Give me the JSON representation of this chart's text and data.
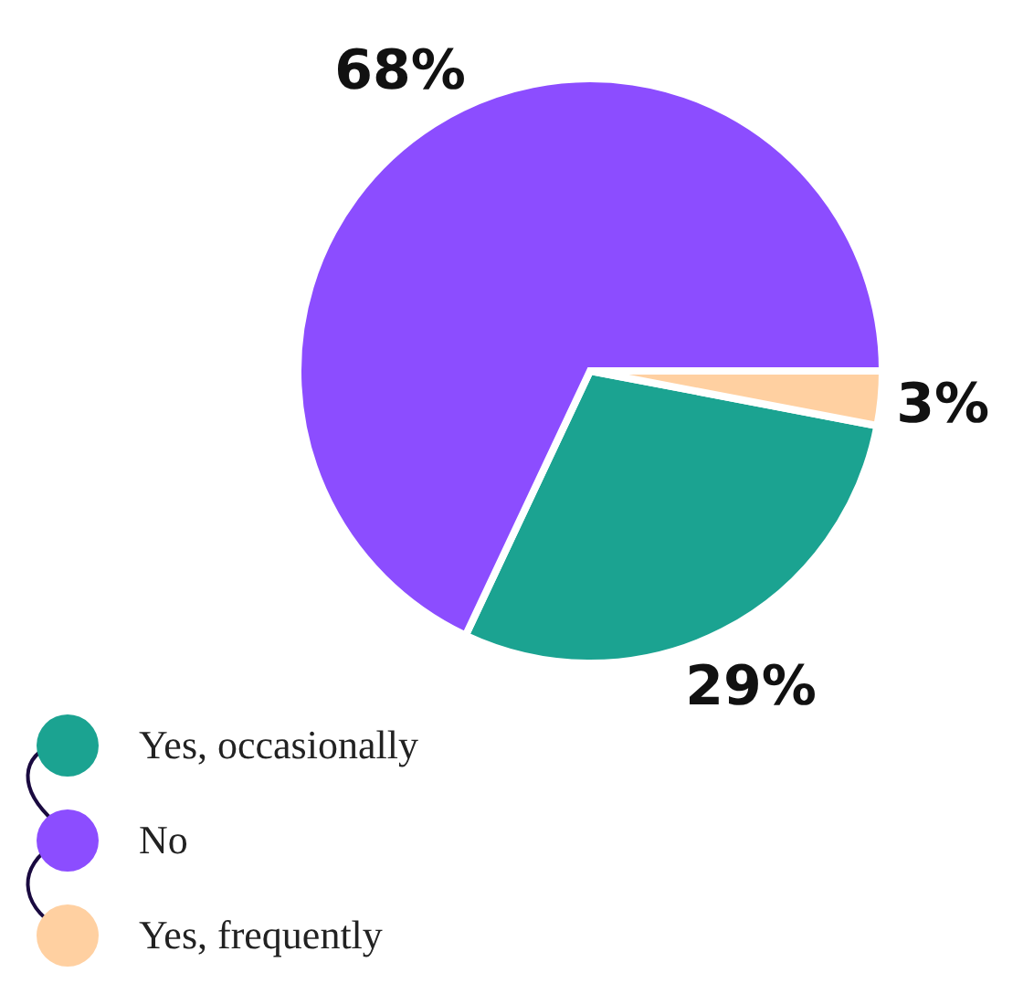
{
  "chart_data": {
    "type": "pie",
    "categories": [
      "Yes, occasionally",
      "No",
      "Yes, frequently"
    ],
    "values": [
      29,
      68,
      3
    ],
    "value_labels": [
      "29%",
      "68%",
      "3%"
    ],
    "colors": [
      "#1ba391",
      "#8c4dff",
      "#ffd0a1"
    ],
    "legend": "bottom left"
  }
}
